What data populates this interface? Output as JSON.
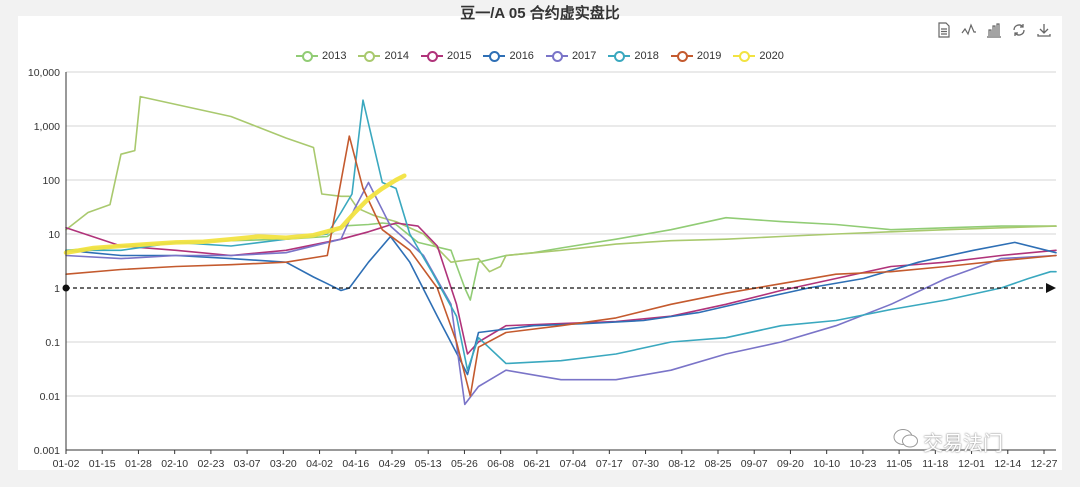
{
  "chart_data": {
    "type": "line",
    "title": "豆一/A 05 合约虚实盘比",
    "y_scale": "log",
    "ylim": [
      0.001,
      10000
    ],
    "y_ticks": [
      "10,000",
      "1,000",
      "100",
      "10",
      "1",
      "0.1",
      "0.01",
      "0.001"
    ],
    "x_ticks": [
      "01-02",
      "01-15",
      "01-28",
      "02-10",
      "02-23",
      "03-07",
      "03-20",
      "04-02",
      "04-16",
      "04-29",
      "05-13",
      "05-26",
      "06-08",
      "06-21",
      "07-04",
      "07-17",
      "07-30",
      "08-12",
      "08-25",
      "09-07",
      "09-20",
      "10-10",
      "10-23",
      "11-05",
      "11-18",
      "12-01",
      "12-14",
      "12-27"
    ],
    "x_unit": "day of year (0 = 01-02, 360 = 12-27)",
    "reference_line": {
      "y": 1,
      "style": "dashed-arrow"
    },
    "series": [
      {
        "name": "2013",
        "color": "#91cc75",
        "points": [
          [
            0,
            5
          ],
          [
            20,
            6
          ],
          [
            40,
            7
          ],
          [
            60,
            7.5
          ],
          [
            80,
            8
          ],
          [
            95,
            9
          ],
          [
            100,
            14
          ],
          [
            110,
            15
          ],
          [
            115,
            16
          ],
          [
            120,
            15
          ],
          [
            128,
            7
          ],
          [
            140,
            5
          ],
          [
            145,
            1
          ],
          [
            147,
            0.6
          ],
          [
            150,
            3
          ],
          [
            160,
            4
          ],
          [
            170,
            4.5
          ],
          [
            180,
            5.5
          ],
          [
            200,
            8
          ],
          [
            220,
            12
          ],
          [
            240,
            20
          ],
          [
            260,
            17
          ],
          [
            280,
            15
          ],
          [
            300,
            12
          ],
          [
            320,
            13
          ],
          [
            340,
            14
          ],
          [
            360,
            14
          ]
        ]
      },
      {
        "name": "2014",
        "color": "#a9c96e",
        "points": [
          [
            0,
            12
          ],
          [
            8,
            25
          ],
          [
            16,
            35
          ],
          [
            20,
            300
          ],
          [
            25,
            350
          ],
          [
            27,
            3500
          ],
          [
            60,
            1500
          ],
          [
            80,
            600
          ],
          [
            90,
            400
          ],
          [
            93,
            55
          ],
          [
            100,
            50
          ],
          [
            103,
            50
          ],
          [
            106,
            30
          ],
          [
            112,
            22
          ],
          [
            120,
            17
          ],
          [
            130,
            10
          ],
          [
            140,
            3
          ],
          [
            144,
            3.2
          ],
          [
            150,
            3.5
          ],
          [
            154,
            2
          ],
          [
            158,
            2.5
          ],
          [
            160,
            4
          ],
          [
            180,
            5
          ],
          [
            200,
            6.5
          ],
          [
            220,
            7.5
          ],
          [
            240,
            8
          ],
          [
            260,
            9
          ],
          [
            280,
            10
          ],
          [
            300,
            11
          ],
          [
            320,
            12
          ],
          [
            340,
            13
          ],
          [
            360,
            14
          ]
        ]
      },
      {
        "name": "2015",
        "color": "#b0337a",
        "points": [
          [
            0,
            13
          ],
          [
            20,
            6
          ],
          [
            40,
            5
          ],
          [
            60,
            4
          ],
          [
            80,
            5
          ],
          [
            100,
            8
          ],
          [
            110,
            11
          ],
          [
            120,
            16
          ],
          [
            128,
            14
          ],
          [
            135,
            6
          ],
          [
            142,
            0.5
          ],
          [
            146,
            0.06
          ],
          [
            150,
            0.1
          ],
          [
            160,
            0.2
          ],
          [
            180,
            0.22
          ],
          [
            200,
            0.24
          ],
          [
            220,
            0.3
          ],
          [
            240,
            0.5
          ],
          [
            260,
            0.9
          ],
          [
            280,
            1.5
          ],
          [
            300,
            2.5
          ],
          [
            320,
            3
          ],
          [
            340,
            4
          ],
          [
            360,
            5
          ]
        ]
      },
      {
        "name": "2016",
        "color": "#2e6fb5",
        "points": [
          [
            0,
            5
          ],
          [
            20,
            4
          ],
          [
            40,
            4
          ],
          [
            60,
            3.5
          ],
          [
            80,
            3
          ],
          [
            90,
            1.6
          ],
          [
            95,
            1.2
          ],
          [
            100,
            0.9
          ],
          [
            103,
            1
          ],
          [
            110,
            3
          ],
          [
            118,
            9
          ],
          [
            125,
            3
          ],
          [
            135,
            0.3
          ],
          [
            143,
            0.05
          ],
          [
            146,
            0.025
          ],
          [
            150,
            0.15
          ],
          [
            170,
            0.2
          ],
          [
            190,
            0.22
          ],
          [
            210,
            0.25
          ],
          [
            230,
            0.35
          ],
          [
            250,
            0.6
          ],
          [
            270,
            1.0
          ],
          [
            290,
            1.5
          ],
          [
            310,
            3
          ],
          [
            330,
            5
          ],
          [
            345,
            7
          ],
          [
            360,
            4.5
          ]
        ]
      },
      {
        "name": "2017",
        "color": "#7a74c8",
        "points": [
          [
            0,
            4
          ],
          [
            20,
            3.5
          ],
          [
            40,
            4
          ],
          [
            60,
            4
          ],
          [
            80,
            4.5
          ],
          [
            100,
            8
          ],
          [
            105,
            30
          ],
          [
            110,
            90
          ],
          [
            118,
            14
          ],
          [
            130,
            4
          ],
          [
            140,
            0.5
          ],
          [
            145,
            0.007
          ],
          [
            150,
            0.015
          ],
          [
            160,
            0.03
          ],
          [
            180,
            0.02
          ],
          [
            200,
            0.02
          ],
          [
            220,
            0.03
          ],
          [
            240,
            0.06
          ],
          [
            260,
            0.1
          ],
          [
            280,
            0.2
          ],
          [
            300,
            0.5
          ],
          [
            320,
            1.5
          ],
          [
            340,
            3.5
          ],
          [
            360,
            4
          ]
        ]
      },
      {
        "name": "2018",
        "color": "#3aa8bf",
        "points": [
          [
            0,
            5
          ],
          [
            20,
            5
          ],
          [
            40,
            7
          ],
          [
            60,
            6
          ],
          [
            80,
            8
          ],
          [
            95,
            10
          ],
          [
            100,
            25
          ],
          [
            104,
            55
          ],
          [
            108,
            3000
          ],
          [
            115,
            90
          ],
          [
            120,
            70
          ],
          [
            125,
            10
          ],
          [
            133,
            2
          ],
          [
            142,
            0.3
          ],
          [
            146,
            0.03
          ],
          [
            150,
            0.12
          ],
          [
            160,
            0.04
          ],
          [
            180,
            0.045
          ],
          [
            200,
            0.06
          ],
          [
            220,
            0.1
          ],
          [
            240,
            0.12
          ],
          [
            260,
            0.2
          ],
          [
            280,
            0.25
          ],
          [
            300,
            0.4
          ],
          [
            320,
            0.6
          ],
          [
            340,
            1.0
          ],
          [
            350,
            1.5
          ],
          [
            358,
            2
          ],
          [
            360,
            2
          ]
        ]
      },
      {
        "name": "2019",
        "color": "#c45a2e",
        "points": [
          [
            0,
            1.8
          ],
          [
            20,
            2.2
          ],
          [
            40,
            2.5
          ],
          [
            60,
            2.7
          ],
          [
            80,
            3
          ],
          [
            95,
            4
          ],
          [
            103,
            650
          ],
          [
            108,
            70
          ],
          [
            115,
            12
          ],
          [
            125,
            5
          ],
          [
            135,
            1
          ],
          [
            142,
            0.1
          ],
          [
            147,
            0.01
          ],
          [
            150,
            0.08
          ],
          [
            160,
            0.15
          ],
          [
            180,
            0.2
          ],
          [
            200,
            0.28
          ],
          [
            220,
            0.5
          ],
          [
            240,
            0.8
          ],
          [
            260,
            1.2
          ],
          [
            280,
            1.8
          ],
          [
            300,
            2
          ],
          [
            320,
            2.5
          ],
          [
            340,
            3.2
          ],
          [
            360,
            4
          ]
        ]
      },
      {
        "name": "2020",
        "color": "#f2e341",
        "thick": true,
        "points": [
          [
            0,
            4.5
          ],
          [
            10,
            5.5
          ],
          [
            20,
            6
          ],
          [
            30,
            6.5
          ],
          [
            40,
            7
          ],
          [
            50,
            7.2
          ],
          [
            60,
            8
          ],
          [
            70,
            9
          ],
          [
            80,
            8.5
          ],
          [
            90,
            9.5
          ],
          [
            100,
            13
          ],
          [
            105,
            25
          ],
          [
            110,
            45
          ],
          [
            115,
            70
          ],
          [
            120,
            100
          ],
          [
            123,
            120
          ]
        ]
      }
    ]
  },
  "toolbox": {
    "icons": [
      "data-view-icon",
      "line-switch-icon",
      "bar-switch-icon",
      "restore-icon",
      "download-icon"
    ]
  },
  "watermark": {
    "brand": "交易法门"
  }
}
